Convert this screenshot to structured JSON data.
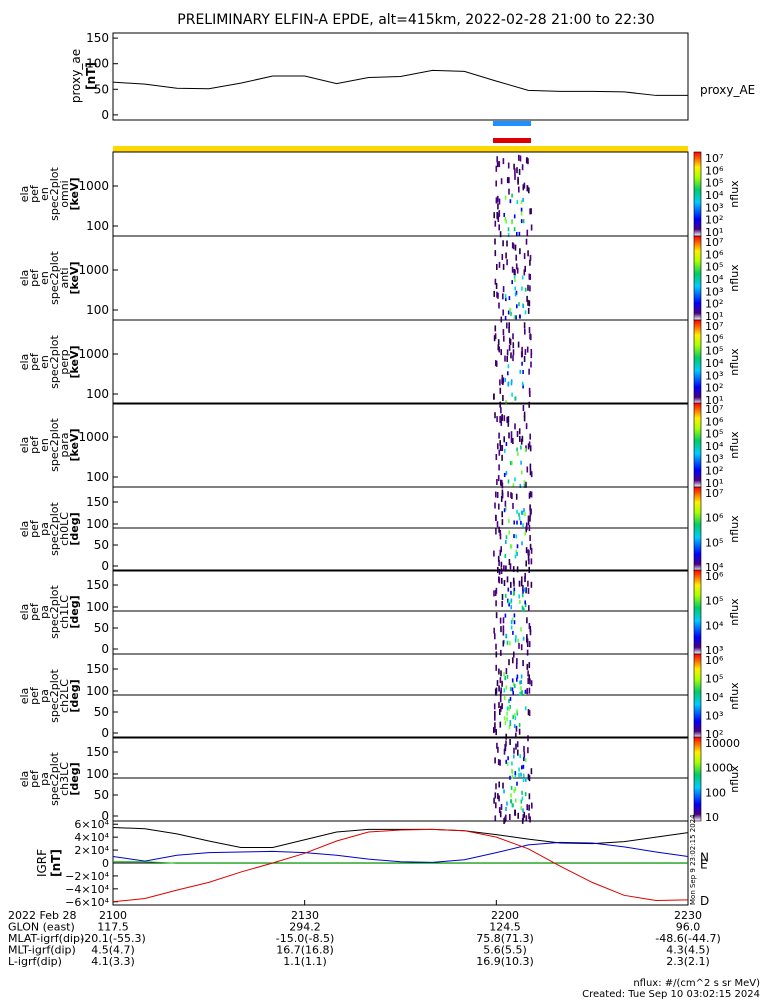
{
  "title": "PRELIMINARY ELFIN-A EPDE, alt=415km, 2022-02-28 21:00 to 22:30",
  "colors": {
    "blue_bar": "#1e90ff",
    "red_bar": "#dd0000",
    "yellow_bar": "#ffd700",
    "trace": "#000000"
  },
  "chart_data": [
    {
      "type": "line",
      "panel": "proxy_ae",
      "ylabel": "proxy_ae",
      "yunits": "[nT]",
      "legend": "proxy_AE",
      "ylim": [
        -10,
        160
      ],
      "yticks": [
        "150",
        "100",
        "50",
        "0"
      ],
      "x_minutes": [
        0,
        5,
        10,
        15,
        20,
        25,
        30,
        35,
        40,
        45,
        50,
        55,
        60,
        65,
        70,
        75,
        80,
        85,
        90
      ],
      "values": [
        64,
        60,
        52,
        51,
        62,
        76,
        76,
        61,
        73,
        75,
        87,
        85,
        66,
        48,
        46,
        46,
        45,
        38,
        38
      ]
    },
    {
      "type": "heatmap",
      "panel": "spec2plot omni",
      "ylabel": [
        "ela",
        "pef",
        "en",
        "spec2plot",
        "omni"
      ],
      "yunits": "[keV]",
      "yticks": [
        "1000",
        "100"
      ],
      "colorbar": {
        "label": "nflux",
        "ticks": [
          "10⁷",
          "10⁶",
          "10⁵",
          "10⁴",
          "10³",
          "10²",
          "10¹"
        ]
      }
    },
    {
      "type": "heatmap",
      "panel": "spec2plot anti",
      "ylabel": [
        "ela",
        "pef",
        "en",
        "spec2plot",
        "anti"
      ],
      "yunits": "[keV]",
      "yticks": [
        "1000",
        "100"
      ],
      "colorbar": {
        "label": "nflux",
        "ticks": [
          "10⁷",
          "10⁶",
          "10⁵",
          "10⁴",
          "10³",
          "10²",
          "10¹"
        ]
      }
    },
    {
      "type": "heatmap",
      "panel": "spec2plot perp",
      "ylabel": [
        "ela",
        "pef",
        "en",
        "spec2plot",
        "perp"
      ],
      "yunits": "[keV]",
      "yticks": [
        "1000",
        "100"
      ],
      "colorbar": {
        "label": "nflux",
        "ticks": [
          "10⁷",
          "10⁶",
          "10⁵",
          "10⁴",
          "10³",
          "10²",
          "10¹"
        ]
      }
    },
    {
      "type": "heatmap",
      "panel": "spec2plot para",
      "ylabel": [
        "ela",
        "pef",
        "en",
        "spec2plot",
        "para"
      ],
      "yunits": "[keV]",
      "yticks": [
        "1000",
        "100"
      ],
      "colorbar": {
        "label": "nflux",
        "ticks": [
          "10⁷",
          "10⁶",
          "10⁵",
          "10⁴",
          "10³",
          "10²",
          "10¹"
        ]
      }
    },
    {
      "type": "heatmap",
      "panel": "spec2plot ch0LC",
      "ylabel": [
        "ela",
        "pef",
        "pa",
        "spec2plot",
        "ch0LC"
      ],
      "yunits": "[deg]",
      "yticks": [
        "150",
        "100",
        "50",
        "0"
      ],
      "colorbar": {
        "label": "nflux",
        "ticks": [
          "10⁷",
          "10⁶",
          "10⁵",
          "10⁴"
        ]
      }
    },
    {
      "type": "heatmap",
      "panel": "spec2plot ch1LC",
      "ylabel": [
        "ela",
        "pef",
        "pa",
        "spec2plot",
        "ch1LC"
      ],
      "yunits": "[deg]",
      "yticks": [
        "150",
        "100",
        "50",
        "0"
      ],
      "colorbar": {
        "label": "nflux",
        "ticks": [
          "10⁶",
          "10⁵",
          "10⁴",
          "10³"
        ]
      }
    },
    {
      "type": "heatmap",
      "panel": "spec2plot ch2LC",
      "ylabel": [
        "ela",
        "pef",
        "pa",
        "spec2plot",
        "ch2LC"
      ],
      "yunits": "[deg]",
      "yticks": [
        "150",
        "100",
        "50",
        "0"
      ],
      "colorbar": {
        "label": "nflux",
        "ticks": [
          "10⁶",
          "10⁵",
          "10⁴",
          "10³",
          "10²"
        ]
      }
    },
    {
      "type": "heatmap",
      "panel": "spec2plot ch3LC",
      "ylabel": [
        "ela",
        "pef",
        "pa",
        "spec2plot",
        "ch3LC"
      ],
      "yunits": "[deg]",
      "yticks": [
        "150",
        "100",
        "50",
        "0"
      ],
      "colorbar": {
        "label": "nflux",
        "ticks": [
          "10000",
          "1000",
          "100",
          "10"
        ]
      }
    },
    {
      "type": "line",
      "panel": "IGRF",
      "ylabel": "IGRF",
      "yunits": "[nT]",
      "yticks": [
        "6×10⁴",
        "4×10⁴",
        "2×10⁴",
        "0",
        "−2×10⁴",
        "−4×10⁴",
        "−6×10⁴"
      ],
      "ylim": [
        -65000,
        65000
      ],
      "x_minutes": [
        0,
        5,
        10,
        15,
        20,
        25,
        30,
        35,
        40,
        45,
        50,
        55,
        60,
        65,
        70,
        75,
        80,
        85,
        90
      ],
      "series": [
        {
          "name": "",
          "values": [
            55000,
            53000,
            45000,
            34000,
            24000,
            24000,
            36000,
            48000,
            52000,
            52000,
            52000,
            50000,
            44000,
            37000,
            31000,
            30000,
            33000,
            40000,
            47000
          ],
          "color": "#000000"
        },
        {
          "name": "N",
          "values": [
            10000,
            3000,
            12000,
            16000,
            17000,
            18000,
            16000,
            12000,
            6000,
            2000,
            1000,
            5000,
            16000,
            28000,
            32000,
            31000,
            25000,
            17000,
            10000
          ],
          "color": "#0000cc"
        },
        {
          "name": "E",
          "values": [
            2000,
            2000,
            -400,
            -400,
            -400,
            -400,
            -400,
            -400,
            -400,
            -400,
            -400,
            -400,
            -400,
            -400,
            -400,
            -400,
            -400,
            -400,
            -400
          ],
          "color": "#00bb00"
        },
        {
          "name": "D",
          "values": [
            -60000,
            -55000,
            -42000,
            -30000,
            -14000,
            0,
            15000,
            34000,
            48000,
            51000,
            52000,
            50000,
            40000,
            22000,
            -5000,
            -30000,
            -50000,
            -58000,
            -57000
          ],
          "color": "#dd0000"
        }
      ]
    }
  ],
  "ticks_table": {
    "rows": [
      {
        "label": "2022 Feb 28",
        "values": [
          "2100",
          "2130",
          "2200",
          "2230"
        ]
      },
      {
        "label": "GLON (east)",
        "values": [
          "117.5",
          "294.2",
          "124.5",
          "96.0"
        ]
      },
      {
        "label": "MLAT-igrf(dip)",
        "values": [
          "-20.1(-55.3)",
          "-15.0(-8.5)",
          "75.8(71.3)",
          "-48.6(-44.7)"
        ]
      },
      {
        "label": "MLT-igrf(dip)",
        "values": [
          "4.5(4.7)",
          "16.7(16.8)",
          "5.6(5.5)",
          "4.3(4.5)"
        ]
      },
      {
        "label": "L-igrf(dip)",
        "values": [
          "4.1(3.3)",
          "1.1(1.1)",
          "16.9(10.3)",
          "2.3(2.1)"
        ]
      }
    ]
  },
  "footer": {
    "units": "nflux: #/(cm^2 s sr MeV)",
    "created": "Created: Tue Sep 10 03:02:15 2024"
  },
  "side_stamp": "Mon Sep  9 23:02:15 2024"
}
